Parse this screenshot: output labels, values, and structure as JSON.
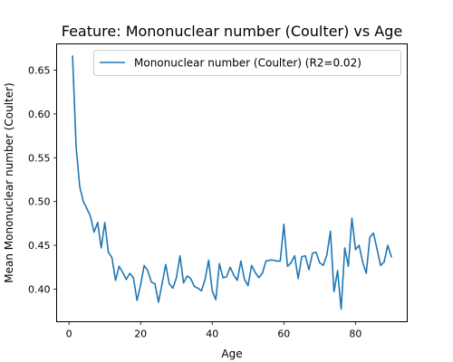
{
  "chart_data": {
    "type": "line",
    "title": "Feature: Mononuclear number (Coulter) vs Age",
    "xlabel": "Age",
    "ylabel": "Mean Mononuclear number (Coulter)",
    "xlim": [
      -3.45,
      94.45
    ],
    "ylim": [
      0.3627,
      0.68
    ],
    "xticks": [
      0,
      20,
      40,
      60,
      80
    ],
    "xtick_labels": [
      "0",
      "20",
      "40",
      "60",
      "80"
    ],
    "yticks": [
      0.4,
      0.45,
      0.5,
      0.55,
      0.6,
      0.65
    ],
    "ytick_labels": [
      "0.40",
      "0.45",
      "0.50",
      "0.55",
      "0.60",
      "0.65"
    ],
    "grid": false,
    "legend_position": "top-right",
    "series": [
      {
        "name": "Mononuclear number (Coulter) (R2=0.02)",
        "color": "#1f77b4",
        "x": [
          1,
          2,
          3,
          4,
          5,
          6,
          7,
          8,
          9,
          10,
          11,
          12,
          13,
          14,
          15,
          16,
          17,
          18,
          19,
          20,
          21,
          22,
          23,
          24,
          25,
          26,
          27,
          28,
          29,
          30,
          31,
          32,
          33,
          34,
          35,
          36,
          37,
          38,
          39,
          40,
          41,
          42,
          43,
          44,
          45,
          46,
          47,
          48,
          49,
          50,
          51,
          52,
          53,
          54,
          55,
          56,
          57,
          58,
          59,
          60,
          61,
          62,
          63,
          64,
          65,
          66,
          67,
          68,
          69,
          70,
          71,
          72,
          73,
          74,
          75,
          76,
          77,
          78,
          79,
          80,
          81,
          82,
          83,
          84,
          85,
          86,
          87,
          88,
          89,
          90
        ],
        "y": [
          0.666,
          0.562,
          0.517,
          0.5,
          0.492,
          0.483,
          0.465,
          0.476,
          0.447,
          0.476,
          0.442,
          0.436,
          0.41,
          0.426,
          0.419,
          0.411,
          0.418,
          0.413,
          0.387,
          0.405,
          0.427,
          0.421,
          0.408,
          0.406,
          0.385,
          0.406,
          0.428,
          0.406,
          0.401,
          0.413,
          0.438,
          0.407,
          0.415,
          0.412,
          0.403,
          0.401,
          0.398,
          0.411,
          0.433,
          0.398,
          0.388,
          0.429,
          0.413,
          0.414,
          0.425,
          0.416,
          0.41,
          0.432,
          0.411,
          0.404,
          0.427,
          0.419,
          0.413,
          0.418,
          0.432,
          0.433,
          0.433,
          0.432,
          0.432,
          0.474,
          0.426,
          0.43,
          0.438,
          0.412,
          0.437,
          0.438,
          0.422,
          0.441,
          0.442,
          0.43,
          0.427,
          0.439,
          0.466,
          0.397,
          0.421,
          0.377,
          0.447,
          0.426,
          0.481,
          0.445,
          0.45,
          0.431,
          0.418,
          0.459,
          0.464,
          0.446,
          0.427,
          0.431,
          0.45,
          0.437
        ]
      }
    ]
  }
}
